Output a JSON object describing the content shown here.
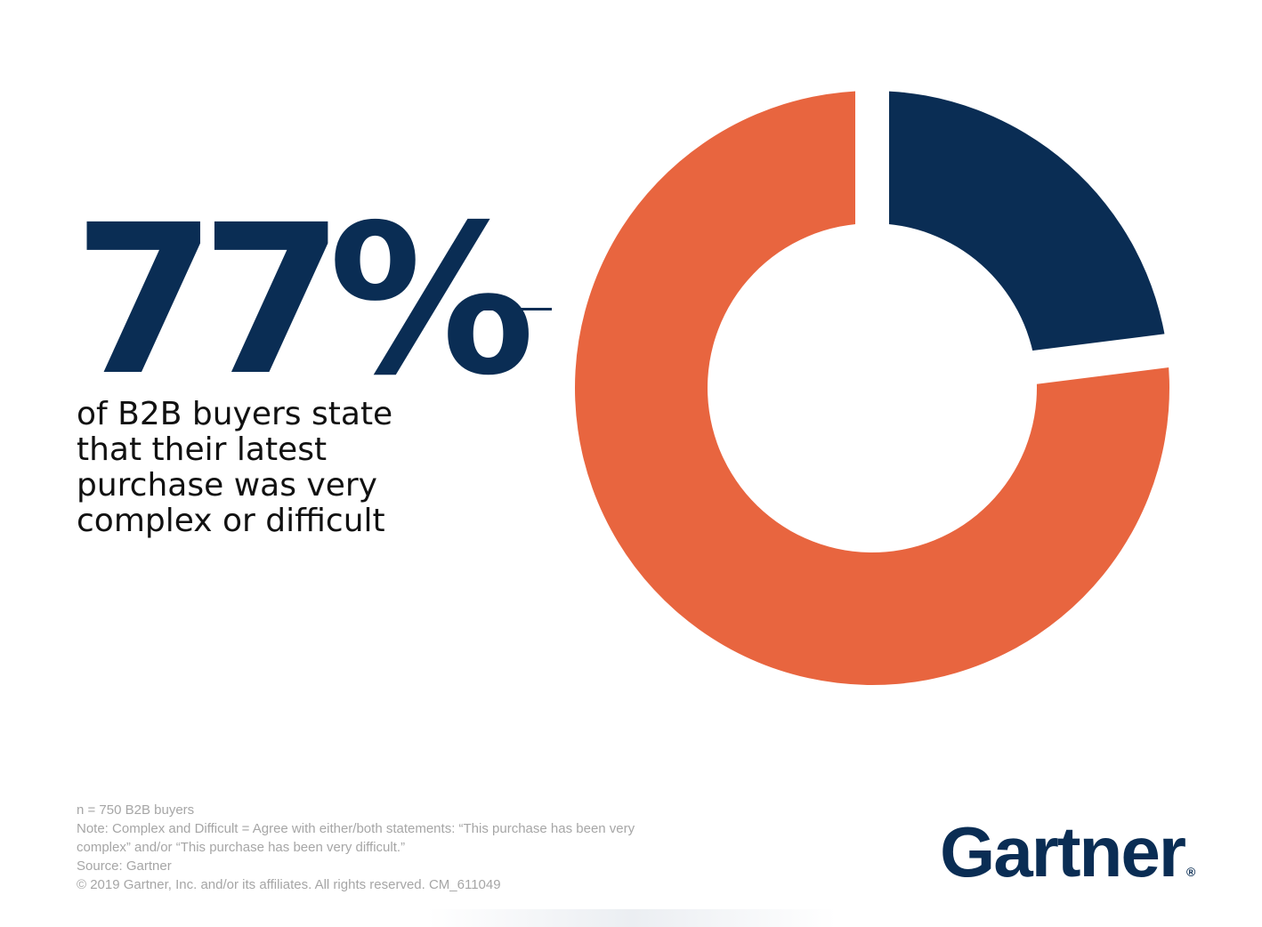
{
  "stat": {
    "value": "77%",
    "caption": "of B2B buyers state that their latest purchase was very complex or difficult"
  },
  "chart_data": {
    "type": "pie",
    "donut": true,
    "slices": [
      {
        "label": "very complex or difficult",
        "value": 77,
        "color": "#e8653f"
      },
      {
        "label": "",
        "value": 23,
        "color": "#0a2d54"
      }
    ],
    "title": "",
    "legend": "none"
  },
  "footnotes": {
    "sample": "n = 750 B2B buyers",
    "note": "Note: Complex and Difficult = Agree with either/both statements: “This purchase has been very complex” and/or “This purchase has been very difficult.”",
    "source": "Source: Gartner",
    "copyright": "© 2019 Gartner, Inc. and/or its affiliates. All rights reserved. CM_611049"
  },
  "logo": {
    "text": "Gartner",
    "mark": "®"
  },
  "colors": {
    "navy": "#0a2d54",
    "orange": "#e8653f"
  }
}
